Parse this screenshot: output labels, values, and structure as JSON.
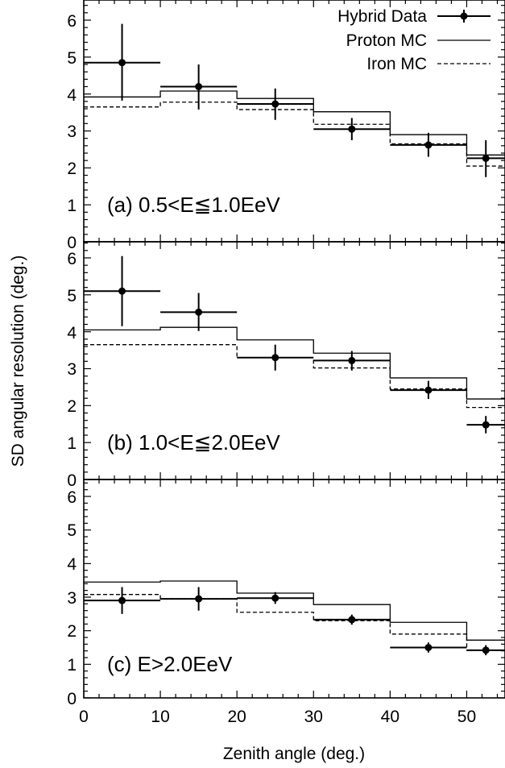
{
  "chart_data": {
    "type": "step-line-errorbar",
    "xlabel": "Zenith angle (deg.)",
    "ylabel": "SD angular resolution (deg.)",
    "xlim": [
      0,
      55
    ],
    "ylim": [
      0,
      6.5
    ],
    "x_ticks": [
      "0",
      "10",
      "20",
      "30",
      "40",
      "50"
    ],
    "y_ticks": [
      "0",
      "1",
      "2",
      "3",
      "4",
      "5",
      "6"
    ],
    "legend": {
      "placement": "top-right",
      "entries": [
        "Hybrid Data",
        "Proton MC",
        "Iron MC"
      ]
    },
    "panels": [
      {
        "label": "(a) 0.5<E≦1.0EeV",
        "hybrid_data": [
          {
            "x": 5,
            "xerr": [
              0,
              10
            ],
            "y": 4.85,
            "yerr": [
              3.82,
              5.9
            ]
          },
          {
            "x": 15,
            "xerr": [
              10,
              20
            ],
            "y": 4.2,
            "yerr": [
              3.58,
              4.8
            ]
          },
          {
            "x": 25,
            "xerr": [
              20,
              30
            ],
            "y": 3.73,
            "yerr": [
              3.3,
              4.15
            ]
          },
          {
            "x": 35,
            "xerr": [
              30,
              40
            ],
            "y": 3.05,
            "yerr": [
              2.75,
              3.35
            ]
          },
          {
            "x": 45,
            "xerr": [
              40,
              50
            ],
            "y": 2.62,
            "yerr": [
              2.3,
              2.95
            ]
          },
          {
            "x": 52.5,
            "xerr": [
              50,
              55
            ],
            "y": 2.26,
            "yerr": [
              1.75,
              2.75
            ]
          }
        ],
        "proton_mc": {
          "edges": [
            0,
            10,
            20,
            30,
            40,
            50,
            55
          ],
          "values": [
            3.92,
            4.08,
            3.88,
            3.52,
            2.9,
            2.35
          ]
        },
        "iron_mc": {
          "edges": [
            0,
            10,
            20,
            30,
            40,
            50,
            55
          ],
          "values": [
            3.65,
            3.78,
            3.58,
            3.18,
            2.65,
            2.05
          ]
        }
      },
      {
        "label": "(b) 1.0<E≦2.0EeV",
        "hybrid_data": [
          {
            "x": 5,
            "xerr": [
              0,
              10
            ],
            "y": 5.1,
            "yerr": [
              4.15,
              6.05
            ]
          },
          {
            "x": 15,
            "xerr": [
              10,
              20
            ],
            "y": 4.53,
            "yerr": [
              4.02,
              5.05
            ]
          },
          {
            "x": 25,
            "xerr": [
              20,
              30
            ],
            "y": 3.3,
            "yerr": [
              2.95,
              3.65
            ]
          },
          {
            "x": 35,
            "xerr": [
              30,
              40
            ],
            "y": 3.22,
            "yerr": [
              2.95,
              3.48
            ]
          },
          {
            "x": 45,
            "xerr": [
              40,
              50
            ],
            "y": 2.42,
            "yerr": [
              2.18,
              2.67
            ]
          },
          {
            "x": 52.5,
            "xerr": [
              50,
              55
            ],
            "y": 1.48,
            "yerr": [
              1.25,
              1.72
            ]
          }
        ],
        "proton_mc": {
          "edges": [
            0,
            10,
            20,
            30,
            40,
            50,
            55
          ],
          "values": [
            4.05,
            4.12,
            3.78,
            3.42,
            2.75,
            2.18
          ]
        },
        "iron_mc": {
          "edges": [
            0,
            10,
            20,
            30,
            40,
            50,
            55
          ],
          "values": [
            3.65,
            3.65,
            3.3,
            3.02,
            2.45,
            1.95
          ]
        }
      },
      {
        "label": "(c) E>2.0EeV",
        "hybrid_data": [
          {
            "x": 5,
            "xerr": [
              0,
              10
            ],
            "y": 2.9,
            "yerr": [
              2.5,
              3.3
            ]
          },
          {
            "x": 15,
            "xerr": [
              10,
              20
            ],
            "y": 2.95,
            "yerr": [
              2.6,
              3.3
            ]
          },
          {
            "x": 25,
            "xerr": [
              20,
              30
            ],
            "y": 2.97,
            "yerr": [
              2.8,
              3.15
            ]
          },
          {
            "x": 35,
            "xerr": [
              30,
              40
            ],
            "y": 2.33,
            "yerr": [
              2.18,
              2.48
            ]
          },
          {
            "x": 45,
            "xerr": [
              40,
              50
            ],
            "y": 1.5,
            "yerr": [
              1.35,
              1.65
            ]
          },
          {
            "x": 52.5,
            "xerr": [
              50,
              55
            ],
            "y": 1.42,
            "yerr": [
              1.27,
              1.57
            ]
          }
        ],
        "proton_mc": {
          "edges": [
            0,
            10,
            20,
            30,
            40,
            50,
            55
          ],
          "values": [
            3.45,
            3.48,
            3.12,
            2.78,
            2.25,
            1.72
          ]
        },
        "iron_mc": {
          "edges": [
            0,
            10,
            20,
            30,
            40,
            50,
            55
          ],
          "values": [
            3.08,
            2.95,
            2.55,
            2.3,
            1.9,
            1.42
          ]
        }
      }
    ]
  }
}
